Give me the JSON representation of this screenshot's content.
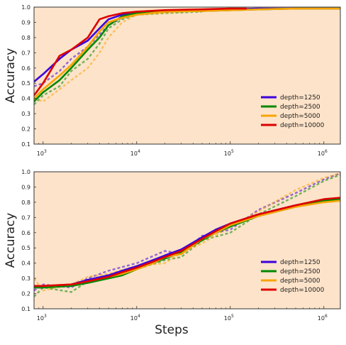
{
  "chart_data": [
    {
      "type": "line",
      "title": "",
      "xlabel": "",
      "ylabel": "Accuracy",
      "xscale": "log",
      "xlim": [
        800,
        1500000
      ],
      "ylim": [
        0.1,
        1.0
      ],
      "xticks": [
        1000,
        10000,
        100000,
        1000000
      ],
      "xtick_labels": [
        [
          "10",
          "3"
        ],
        [
          "10",
          "4"
        ],
        [
          "10",
          "5"
        ],
        [
          "10",
          "6"
        ]
      ],
      "yticks": [
        0.1,
        0.2,
        0.3,
        0.4,
        0.5,
        0.6,
        0.7,
        0.8,
        0.9,
        1.0
      ],
      "ytick_labels": [
        "0.1",
        "0.2",
        "0.3",
        "0.4",
        "0.5",
        "0.6",
        "0.7",
        "0.8",
        "0.9",
        "1.0"
      ],
      "background": "#fde3c9",
      "grid": false,
      "legend_position": "lower-right",
      "series": [
        {
          "name": "depth=1250",
          "color": "#3a00dd",
          "x": [
            800,
            1000,
            1500,
            2000,
            3000,
            4000,
            5000,
            7000,
            10000,
            20000,
            50000,
            100000,
            200000,
            500000,
            1000000,
            1500000
          ],
          "y": [
            0.51,
            0.56,
            0.66,
            0.72,
            0.78,
            0.86,
            0.92,
            0.95,
            0.96,
            0.97,
            0.98,
            0.985,
            0.99,
            0.99,
            0.99,
            0.99
          ]
        },
        {
          "name": "depth=2500",
          "color": "#008800",
          "x": [
            800,
            1000,
            1500,
            2000,
            3000,
            4000,
            5000,
            7000,
            10000,
            20000,
            50000,
            100000,
            200000,
            500000,
            1000000,
            1500000
          ],
          "y": [
            0.38,
            0.44,
            0.52,
            0.6,
            0.72,
            0.8,
            0.88,
            0.94,
            0.96,
            0.97,
            0.975,
            0.98,
            0.985,
            0.99,
            0.99,
            0.99
          ]
        },
        {
          "name": "depth=5000",
          "color": "#f7a400",
          "x": [
            800,
            1000,
            1500,
            2000,
            3000,
            4000,
            5000,
            7000,
            10000,
            20000,
            50000,
            100000,
            200000,
            500000,
            1000000,
            1500000
          ],
          "y": [
            0.4,
            0.46,
            0.55,
            0.62,
            0.74,
            0.84,
            0.9,
            0.93,
            0.95,
            0.97,
            0.975,
            0.98,
            0.985,
            0.99,
            0.99,
            0.99
          ]
        },
        {
          "name": "depth=10000",
          "color": "#dd0000",
          "x": [
            800,
            1000,
            1500,
            2000,
            3000,
            4000,
            5000,
            7000,
            10000,
            20000,
            50000,
            100000,
            150000
          ],
          "y": [
            0.42,
            0.5,
            0.68,
            0.72,
            0.8,
            0.92,
            0.94,
            0.96,
            0.97,
            0.98,
            0.985,
            0.99,
            0.99
          ]
        }
      ]
    },
    {
      "type": "line",
      "title": "",
      "xlabel": "Steps",
      "ylabel": "Accuracy",
      "xscale": "log",
      "xlim": [
        800,
        1500000
      ],
      "ylim": [
        0.1,
        1.0
      ],
      "xticks": [
        1000,
        10000,
        100000,
        1000000
      ],
      "xtick_labels": [
        [
          "10",
          "3"
        ],
        [
          "10",
          "4"
        ],
        [
          "10",
          "5"
        ],
        [
          "10",
          "6"
        ]
      ],
      "yticks": [
        0.1,
        0.2,
        0.3,
        0.4,
        0.5,
        0.6,
        0.7,
        0.8,
        0.9,
        1.0
      ],
      "ytick_labels": [
        "0.1",
        "0.2",
        "0.3",
        "0.4",
        "0.5",
        "0.6",
        "0.7",
        "0.8",
        "0.9",
        "1.0"
      ],
      "background": "#fde3c9",
      "grid": false,
      "legend_position": "lower-right",
      "series": [
        {
          "name": "depth=1250",
          "color": "#3a00dd",
          "x": [
            800,
            1000,
            2000,
            3000,
            5000,
            7000,
            10000,
            15000,
            20000,
            30000,
            50000,
            70000,
            100000,
            200000,
            500000,
            1000000,
            1500000
          ],
          "y": [
            0.24,
            0.24,
            0.26,
            0.29,
            0.32,
            0.35,
            0.38,
            0.42,
            0.45,
            0.49,
            0.57,
            0.62,
            0.66,
            0.72,
            0.78,
            0.81,
            0.82
          ]
        },
        {
          "name": "depth=2500",
          "color": "#008800",
          "x": [
            800,
            1000,
            2000,
            3000,
            5000,
            7000,
            10000,
            15000,
            20000,
            30000,
            50000,
            70000,
            100000,
            200000,
            500000,
            1000000,
            1500000
          ],
          "y": [
            0.24,
            0.24,
            0.25,
            0.27,
            0.3,
            0.32,
            0.36,
            0.4,
            0.43,
            0.47,
            0.55,
            0.6,
            0.64,
            0.71,
            0.77,
            0.81,
            0.82
          ]
        },
        {
          "name": "depth=5000",
          "color": "#f7a400",
          "x": [
            800,
            1000,
            2000,
            3000,
            5000,
            7000,
            10000,
            15000,
            20000,
            30000,
            50000,
            70000,
            100000,
            200000,
            500000,
            1000000,
            1500000
          ],
          "y": [
            0.25,
            0.25,
            0.26,
            0.28,
            0.31,
            0.33,
            0.36,
            0.4,
            0.44,
            0.46,
            0.56,
            0.6,
            0.65,
            0.71,
            0.77,
            0.8,
            0.81
          ]
        },
        {
          "name": "depth=10000",
          "color": "#dd0000",
          "x": [
            800,
            1000,
            2000,
            3000,
            5000,
            7000,
            10000,
            15000,
            20000,
            30000,
            50000,
            70000,
            100000,
            200000,
            500000,
            1000000,
            1500000
          ],
          "y": [
            0.25,
            0.25,
            0.26,
            0.28,
            0.31,
            0.34,
            0.37,
            0.41,
            0.44,
            0.48,
            0.56,
            0.61,
            0.66,
            0.72,
            0.78,
            0.82,
            0.83
          ]
        }
      ],
      "dashed_overlay": [
        {
          "color": "#3a00dd",
          "x": [
            800,
            1000,
            2000,
            3000,
            5000,
            10000,
            20000,
            30000,
            50000,
            100000,
            200000,
            500000,
            1000000,
            1500000
          ],
          "y": [
            0.22,
            0.26,
            0.24,
            0.3,
            0.35,
            0.4,
            0.48,
            0.46,
            0.58,
            0.62,
            0.75,
            0.86,
            0.95,
            0.99
          ]
        },
        {
          "color": "#008800",
          "x": [
            800,
            1000,
            2000,
            3000,
            5000,
            10000,
            20000,
            30000,
            50000,
            100000,
            200000,
            500000,
            1000000,
            1500000
          ],
          "y": [
            0.18,
            0.24,
            0.21,
            0.28,
            0.3,
            0.36,
            0.42,
            0.44,
            0.55,
            0.6,
            0.72,
            0.84,
            0.94,
            0.98
          ]
        },
        {
          "color": "#f7a400",
          "x": [
            800,
            1000,
            2000,
            3000,
            5000,
            10000,
            20000,
            30000,
            50000,
            100000,
            200000,
            500000,
            1000000,
            1500000
          ],
          "y": [
            0.3,
            0.22,
            0.26,
            0.31,
            0.33,
            0.38,
            0.4,
            0.47,
            0.53,
            0.64,
            0.74,
            0.88,
            0.96,
            0.99
          ]
        }
      ]
    }
  ],
  "top_dashed_overlay": [
    {
      "color": "#3a00dd",
      "x": [
        800,
        1000,
        1500,
        2000,
        3000,
        4000,
        5000,
        7000,
        10000,
        20000,
        50000
      ],
      "y": [
        0.48,
        0.5,
        0.58,
        0.66,
        0.74,
        0.82,
        0.88,
        0.93,
        0.95,
        0.97,
        0.98
      ]
    },
    {
      "color": "#008800",
      "x": [
        800,
        1000,
        1500,
        2000,
        3000,
        4000,
        5000,
        7000,
        10000,
        20000,
        50000
      ],
      "y": [
        0.36,
        0.42,
        0.48,
        0.58,
        0.66,
        0.76,
        0.86,
        0.92,
        0.95,
        0.96,
        0.97
      ]
    },
    {
      "color": "#f7a400",
      "x": [
        800,
        1000,
        1500,
        2000,
        3000,
        4000,
        5000,
        7000,
        10000,
        20000,
        50000
      ],
      "y": [
        0.4,
        0.38,
        0.46,
        0.52,
        0.6,
        0.7,
        0.8,
        0.9,
        0.95,
        0.96,
        0.98
      ]
    }
  ],
  "legend_entries": [
    "depth=1250",
    "depth=2500",
    "depth=5000",
    "depth=10000"
  ]
}
